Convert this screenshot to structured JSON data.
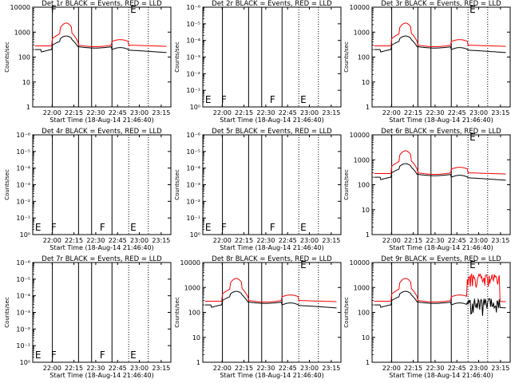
{
  "chart_data": [
    {
      "type": "line",
      "title": "Det 1r BLACK = Events, RED = LLD",
      "xlabel": "Start Time (18-Aug-14 21:46:40)",
      "ylabel": "Counts/sec",
      "yscale": "log",
      "ylim": [
        1,
        10000
      ],
      "yticks": [
        "1",
        "10",
        "100",
        "1000",
        "10000"
      ],
      "xticks": [
        "22:00",
        "22:15",
        "22:30",
        "22:45",
        "23:00",
        "23:15"
      ],
      "markers": [
        "",
        "F",
        "",
        "E"
      ],
      "series": [
        {
          "color": "#ff0000",
          "profile": "red_main",
          "noise": false
        },
        {
          "color": "#000000",
          "profile": "black_main",
          "noise": false
        }
      ]
    },
    {
      "type": "line",
      "title": "Det 2r BLACK = Events, RED = LLD",
      "xlabel": "Start Time (18-Aug-14 21:46:40)",
      "ylabel": "Counts/sec",
      "yscale": "log",
      "ylim": [
        1,
        10000000
      ],
      "yticks": [
        "10⁰",
        "10⁻¹",
        "10⁻²",
        "10⁻³",
        "10⁻⁴",
        "10⁻⁵",
        "10⁻⁶"
      ],
      "xticks": [
        "22:00",
        "22:15",
        "22:30",
        "22:45",
        "23:00",
        "23:15"
      ],
      "markers": [
        "E",
        "F",
        "F",
        "E"
      ],
      "series": []
    },
    {
      "type": "line",
      "title": "Det 3r BLACK = Events, RED = LLD",
      "xlabel": "Start Time (18-Aug-14 21:46:40)",
      "ylabel": "Counts/sec",
      "yscale": "log",
      "ylim": [
        1,
        10000
      ],
      "yticks": [
        "1",
        "10",
        "100",
        "1000",
        "10000"
      ],
      "xticks": [
        "22:00",
        "22:15",
        "22:30",
        "22:45",
        "23:00",
        "23:15"
      ],
      "markers": [
        "",
        "",
        "",
        "E"
      ],
      "series": [
        {
          "color": "#ff0000",
          "profile": "red_main",
          "noise": false
        },
        {
          "color": "#000000",
          "profile": "black_main",
          "noise": false
        }
      ]
    },
    {
      "type": "line",
      "title": "Det 4r BLACK = Events, RED = LLD",
      "xlabel": "Start Time (18-Aug-14 21:46:40)",
      "ylabel": "Counts/sec",
      "yscale": "log",
      "ylim": [
        1,
        10000000
      ],
      "yticks": [
        "10⁰",
        "10⁻¹",
        "10⁻²",
        "10⁻³",
        "10⁻⁴",
        "10⁻⁵",
        "10⁻⁶"
      ],
      "xticks": [
        "22:00",
        "22:15",
        "22:30",
        "22:45",
        "23:00",
        "23:15"
      ],
      "markers": [
        "E",
        "F",
        "F",
        "E"
      ],
      "series": []
    },
    {
      "type": "line",
      "title": "Det 5r BLACK = Events, RED = LLD",
      "xlabel": "Start Time (18-Aug-14 21:46:40)",
      "ylabel": "Counts/sec",
      "yscale": "log",
      "ylim": [
        1,
        10000000
      ],
      "yticks": [
        "10⁰",
        "10⁻¹",
        "10⁻²",
        "10⁻³",
        "10⁻⁴",
        "10⁻⁵",
        "10⁻⁶"
      ],
      "xticks": [
        "22:00",
        "22:15",
        "22:30",
        "22:45",
        "23:00",
        "23:15"
      ],
      "markers": [
        "E",
        "F",
        "F",
        "E"
      ],
      "series": []
    },
    {
      "type": "line",
      "title": "Det 6r BLACK = Events, RED = LLD",
      "xlabel": "Start Time (18-Aug-14 21:46:40)",
      "ylabel": "Counts/sec",
      "yscale": "log",
      "ylim": [
        1,
        10000
      ],
      "yticks": [
        "1",
        "10",
        "100",
        "1000",
        "10000"
      ],
      "xticks": [
        "22:00",
        "22:15",
        "22:30",
        "22:45",
        "23:00",
        "23:15"
      ],
      "markers": [
        "",
        "",
        "",
        "E"
      ],
      "series": [
        {
          "color": "#ff0000",
          "profile": "red_main",
          "noise": false
        },
        {
          "color": "#000000",
          "profile": "black_main",
          "noise": false
        }
      ]
    },
    {
      "type": "line",
      "title": "Det 7r BLACK = Events, RED = LLD",
      "xlabel": "Start Time (18-Aug-14 21:46:40)",
      "ylabel": "Counts/sec",
      "yscale": "log",
      "ylim": [
        1,
        10000000
      ],
      "yticks": [
        "10⁰",
        "10⁻¹",
        "10⁻²",
        "10⁻³",
        "10⁻⁴",
        "10⁻⁵",
        "10⁻⁶"
      ],
      "xticks": [
        "22:00",
        "22:15",
        "22:30",
        "22:45",
        "23:00",
        "23:15"
      ],
      "markers": [
        "E",
        "F",
        "F",
        "E"
      ],
      "series": []
    },
    {
      "type": "line",
      "title": "Det 8r BLACK = Events, RED = LLD",
      "xlabel": "Start Time (18-Aug-14 21:46:40)",
      "ylabel": "Counts/sec",
      "yscale": "log",
      "ylim": [
        1,
        10000
      ],
      "yticks": [
        "1",
        "10",
        "100",
        "1000",
        "10000"
      ],
      "xticks": [
        "22:00",
        "22:15",
        "22:30",
        "22:45",
        "23:00",
        "23:15"
      ],
      "markers": [
        "",
        "",
        "",
        "E"
      ],
      "series": [
        {
          "color": "#ff0000",
          "profile": "red_main",
          "noise": false
        },
        {
          "color": "#000000",
          "profile": "black_main",
          "noise": false
        }
      ]
    },
    {
      "type": "line",
      "title": "Det 9r BLACK = Events, RED = LLD",
      "xlabel": "Start Time (18-Aug-14 21:46:40)",
      "ylabel": "Counts/sec",
      "yscale": "log",
      "ylim": [
        1,
        10000
      ],
      "yticks": [
        "1",
        "10",
        "100",
        "1000",
        "10000"
      ],
      "xticks": [
        "22:00",
        "22:15",
        "22:30",
        "22:45",
        "23:00",
        "23:15"
      ],
      "markers": [
        "",
        "",
        "",
        "E"
      ],
      "series": [
        {
          "color": "#ff0000",
          "profile": "red_main",
          "noise": true
        },
        {
          "color": "#000000",
          "profile": "black_main",
          "noise": true
        }
      ]
    }
  ]
}
